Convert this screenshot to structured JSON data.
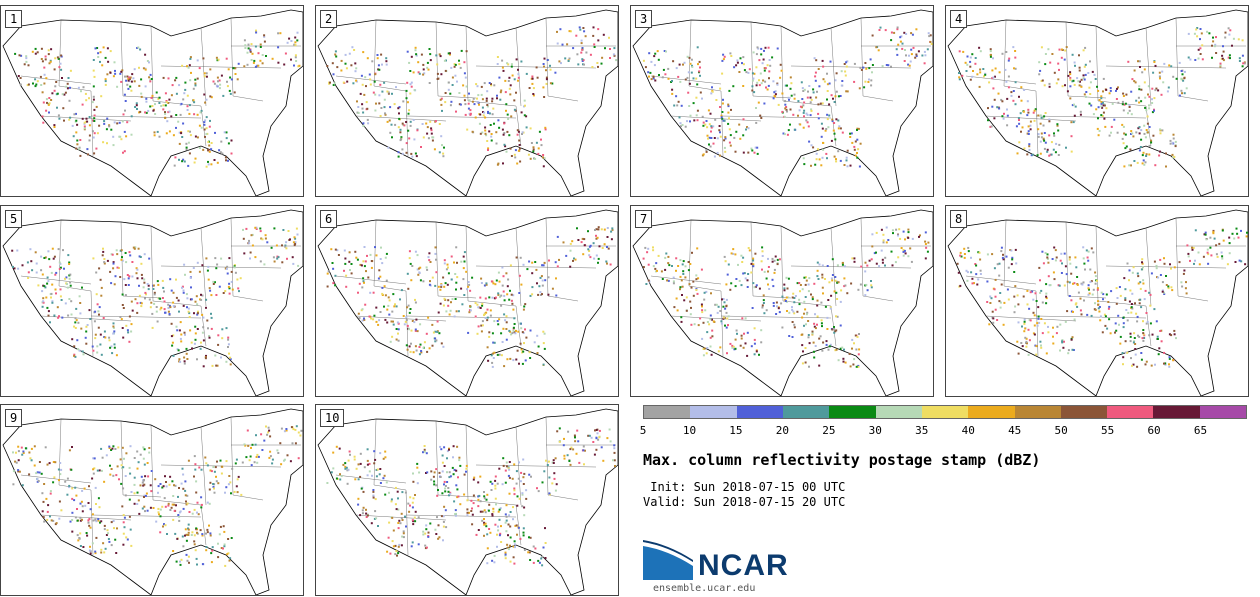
{
  "panels": [
    "1",
    "2",
    "3",
    "4",
    "5",
    "6",
    "7",
    "8",
    "9",
    "10"
  ],
  "colorbar": {
    "colors": [
      "#a3a3a3",
      "#b3bde8",
      "#5060d8",
      "#4f9a9c",
      "#0a8a14",
      "#b6d9b6",
      "#efdd62",
      "#ebab1e",
      "#b98634",
      "#8b5537",
      "#ef5a7e",
      "#671936",
      "#a64aa8"
    ],
    "labels": [
      "5",
      "10",
      "15",
      "20",
      "25",
      "30",
      "35",
      "40",
      "45",
      "50",
      "55",
      "60",
      "65"
    ]
  },
  "title": "Max. column reflectivity postage stamp (dBZ)",
  "init": " Init: Sun 2018-07-15 00 UTC",
  "valid": "Valid: Sun 2018-07-15 20 UTC",
  "logo": {
    "text": "NCAR",
    "url": "ensemble.ucar.edu",
    "color": "#0c3b6e",
    "accent": "#1d72b8"
  }
}
